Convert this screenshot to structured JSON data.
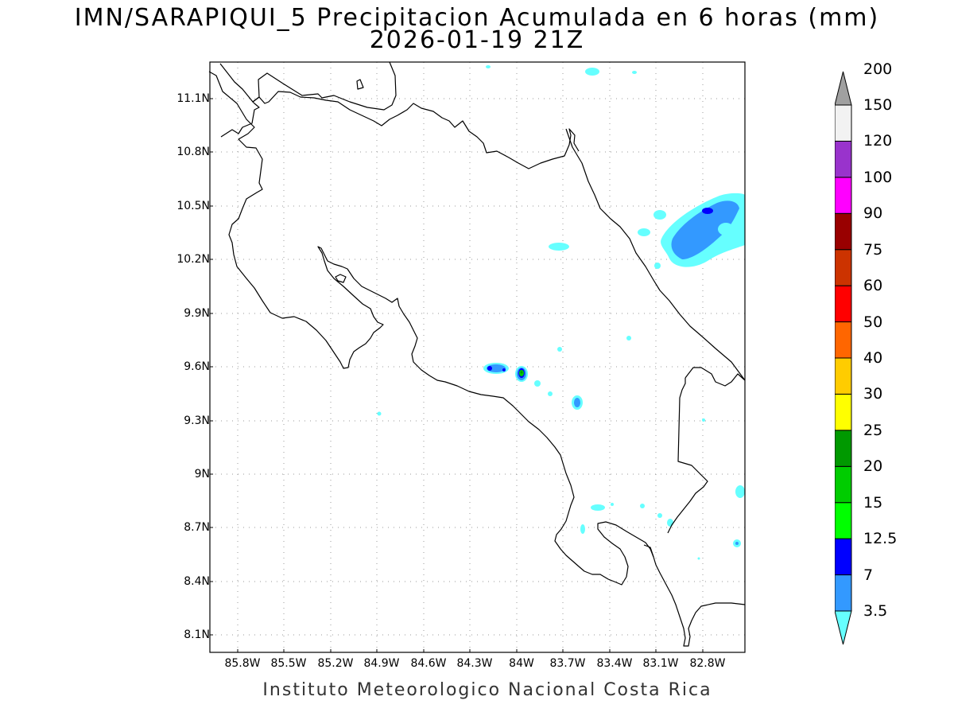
{
  "title_line1": "IMN/SARAPIQUI_5 Precipitacion Acumulada en 6 horas (mm)",
  "title_line2": "2026-01-19 21Z",
  "credit": "Instituto Meteorologico Nacional Costa Rica",
  "lat_labels": [
    "11.1N",
    "10.8N",
    "10.5N",
    "10.2N",
    "9.9N",
    "9.6N",
    "9.3N",
    "9N",
    "8.7N",
    "8.4N",
    "8.1N"
  ],
  "lon_labels": [
    "85.8W",
    "85.5W",
    "85.2W",
    "84.9W",
    "84.6W",
    "84.3W",
    "84W",
    "83.7W",
    "83.4W",
    "83.1W",
    "82.8W"
  ],
  "colorbar": {
    "unit": "mm",
    "levels": [
      "3.5",
      "7",
      "12.5",
      "15",
      "20",
      "25",
      "30",
      "40",
      "50",
      "60",
      "75",
      "90",
      "100",
      "120",
      "150",
      "200"
    ],
    "colors": [
      "#66ffff",
      "#3399ff",
      "#0000ff",
      "#00ff00",
      "#00cc00",
      "#009900",
      "#ffff00",
      "#ffcc00",
      "#ff6600",
      "#ff0000",
      "#cc3300",
      "#990000",
      "#ff00ff",
      "#9933cc",
      "#f2f2f2",
      "#a0a0a0"
    ]
  },
  "map_data": {
    "region": "Costa Rica",
    "variable": "Precipitacion Acumulada en 6 horas",
    "lon_range": [
      -86.07,
      -82.65
    ],
    "lat_range": [
      8.0,
      11.3
    ],
    "precip_areas": [
      {
        "location": "Caribbean offshore NE",
        "lon": -82.85,
        "lat": 10.4,
        "max_class_mm": "12.5"
      },
      {
        "location": "Central mountains",
        "lon": -84.15,
        "lat": 9.59,
        "max_class_mm": "12.5"
      },
      {
        "location": "Central mountains",
        "lon": -83.98,
        "lat": 9.56,
        "max_class_mm": "25"
      },
      {
        "location": "Talamanca",
        "lon": -83.6,
        "lat": 9.41,
        "max_class_mm": "7"
      }
    ]
  }
}
